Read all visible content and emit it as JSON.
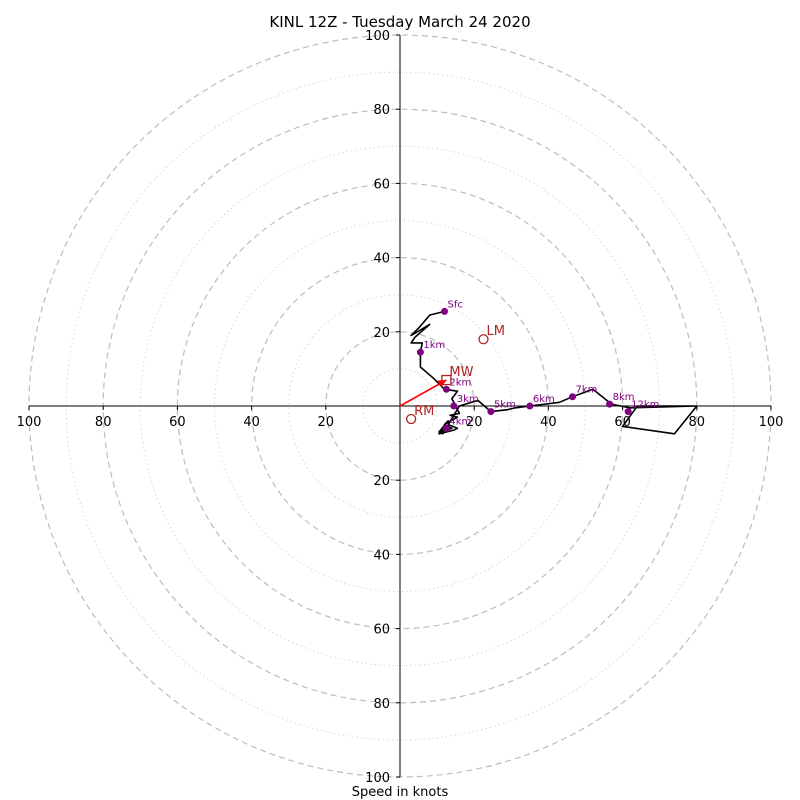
{
  "chart_data": {
    "type": "hodograph",
    "title": "KINL 12Z - Tuesday March 24 2020",
    "xlabel": "Speed in knots",
    "max_speed": 100,
    "ring_step": 20,
    "tick_labels": {
      "left": [
        "100",
        "80",
        "60",
        "40",
        "20"
      ],
      "right": [
        "20",
        "40",
        "60",
        "80",
        "100"
      ],
      "top": [
        "20",
        "40",
        "60",
        "80",
        "100"
      ],
      "bottom": [
        "20",
        "40",
        "60",
        "80",
        "100"
      ]
    },
    "colors": {
      "hodo_line": "#000000",
      "height_markers": "#800080",
      "motion": "#b22222",
      "mean_wind_vector": "#ff0000",
      "rings": "#c0c0c0"
    },
    "hodograph": [
      [
        12,
        25.5
      ],
      [
        8,
        24.5
      ],
      [
        5,
        21
      ],
      [
        3,
        19
      ],
      [
        8,
        22
      ],
      [
        4,
        18.5
      ],
      [
        3,
        17
      ],
      [
        6,
        17
      ],
      [
        5.5,
        14.5
      ],
      [
        5.5,
        10.5
      ],
      [
        9,
        7.5
      ],
      [
        12,
        4.5
      ],
      [
        15.5,
        4
      ],
      [
        14,
        2
      ],
      [
        15,
        0
      ],
      [
        16,
        -2
      ],
      [
        13.5,
        -2.5
      ],
      [
        15.5,
        -3
      ],
      [
        12,
        -5
      ],
      [
        11.5,
        -7.5
      ],
      [
        12,
        -5
      ],
      [
        13,
        -4
      ],
      [
        10.5,
        -7
      ],
      [
        14,
        -6
      ],
      [
        13,
        -5.5
      ],
      [
        11.5,
        -6.5
      ],
      [
        10.5,
        -7.5
      ],
      [
        14.5,
        -6.5
      ],
      [
        15.5,
        -6
      ],
      [
        13,
        -5
      ],
      [
        16,
        0
      ],
      [
        21,
        1.5
      ],
      [
        24.5,
        -1.5
      ],
      [
        29,
        -1
      ],
      [
        31,
        -0.5
      ],
      [
        35,
        0
      ],
      [
        43,
        1
      ],
      [
        46.5,
        2.5
      ],
      [
        52,
        4.5
      ],
      [
        57,
        0.5
      ],
      [
        62,
        -0.5
      ],
      [
        80,
        0
      ],
      [
        64,
        0
      ],
      [
        60,
        -5.5
      ],
      [
        74,
        -7.5
      ],
      [
        80,
        0
      ]
    ],
    "height_markers": [
      {
        "label": "Sfc",
        "u": 12,
        "v": 25.5
      },
      {
        "label": "1km",
        "u": 5.5,
        "v": 14.5
      },
      {
        "label": "2km",
        "u": 12.5,
        "v": 4.5
      },
      {
        "label": "3km",
        "u": 14.5,
        "v": 0
      },
      {
        "label": "4km",
        "u": 12.5,
        "v": -6
      },
      {
        "label": "5km",
        "u": 24.5,
        "v": -1.5
      },
      {
        "label": "6km",
        "u": 35,
        "v": 0
      },
      {
        "label": "7km",
        "u": 46.5,
        "v": 2.5
      },
      {
        "label": "8km",
        "u": 56.5,
        "v": 0.5
      },
      {
        "label": "12km",
        "u": 61.5,
        "v": -1.5
      }
    ],
    "storm_motion": [
      {
        "label": "LM",
        "u": 22.5,
        "v": 18,
        "shape": "circle"
      },
      {
        "label": "MW",
        "u": 12.5,
        "v": 7,
        "shape": "square"
      },
      {
        "label": "RM",
        "u": 3,
        "v": -3.5,
        "shape": "circle"
      }
    ],
    "mean_wind_vector": {
      "from": [
        0,
        0
      ],
      "to": [
        12.5,
        7
      ]
    }
  }
}
